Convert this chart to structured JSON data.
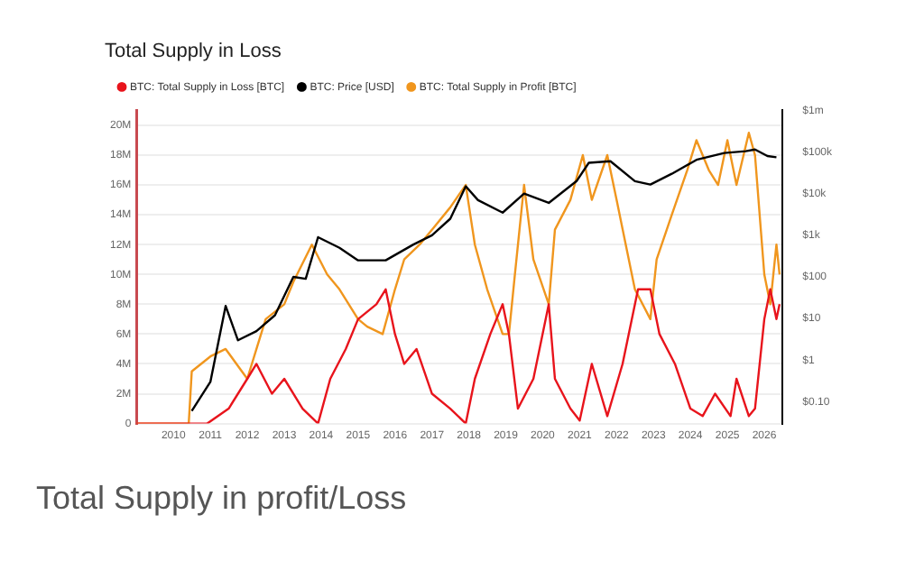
{
  "chart_data": {
    "type": "line",
    "title": "Total Supply in Loss",
    "legend": "top left",
    "grid": "y",
    "marker": "none",
    "line_style": "solid",
    "log": "y2",
    "ylim": [
      0,
      21000000
    ],
    "yticks": [
      {
        "value": 0,
        "label": "0"
      },
      {
        "value": 2000000,
        "label": "2M"
      },
      {
        "value": 4000000,
        "label": "4M"
      },
      {
        "value": 6000000,
        "label": "6M"
      },
      {
        "value": 8000000,
        "label": "8M"
      },
      {
        "value": 10000000,
        "label": "10M"
      },
      {
        "value": 12000000,
        "label": "12M"
      },
      {
        "value": 14000000,
        "label": "14M"
      },
      {
        "value": 16000000,
        "label": "16M"
      },
      {
        "value": 18000000,
        "label": "18M"
      },
      {
        "value": 20000000,
        "label": "20M"
      }
    ],
    "y2lim": [
      0.03,
      1000000
    ],
    "y2ticks": [
      {
        "value": 0.1,
        "label": "$0.10"
      },
      {
        "value": 1,
        "label": "$1"
      },
      {
        "value": 10,
        "label": "$10"
      },
      {
        "value": 100,
        "label": "$100"
      },
      {
        "value": 1000,
        "label": "$1k"
      },
      {
        "value": 10000,
        "label": "$10k"
      },
      {
        "value": 100000,
        "label": "$100k"
      },
      {
        "value": 1000000,
        "label": "$1m"
      }
    ],
    "xlim": [
      "2009-01",
      "2026-07"
    ],
    "xticks": [
      "2010",
      "2011",
      "2012",
      "2013",
      "2014",
      "2015",
      "2016",
      "2017",
      "2018",
      "2019",
      "2020",
      "2021",
      "2022",
      "2023",
      "2024",
      "2025",
      "2026"
    ],
    "series": [
      {
        "name": "BTC: Total Supply in Loss [BTC]",
        "color": "#e8141c",
        "x": [
          "2009-01",
          "2010-12",
          "2011-07",
          "2012-01",
          "2012-04",
          "2012-09",
          "2013-01",
          "2013-07",
          "2013-12",
          "2014-04",
          "2014-09",
          "2015-01",
          "2015-07",
          "2015-10",
          "2016-01",
          "2016-04",
          "2016-08",
          "2017-01",
          "2017-07",
          "2017-12",
          "2018-03",
          "2018-08",
          "2018-12",
          "2019-02",
          "2019-05",
          "2019-10",
          "2020-03",
          "2020-05",
          "2020-10",
          "2021-01",
          "2021-05",
          "2021-10",
          "2022-03",
          "2022-08",
          "2022-12",
          "2023-03",
          "2023-08",
          "2024-01",
          "2024-05",
          "2024-09",
          "2025-02",
          "2025-04",
          "2025-08",
          "2025-10",
          "2026-01",
          "2026-03",
          "2026-05",
          "2026-06"
        ],
        "values": [
          0,
          0,
          1000000,
          3000000,
          4000000,
          2000000,
          3000000,
          1000000,
          0,
          3000000,
          5000000,
          7000000,
          8000000,
          9000000,
          6000000,
          4000000,
          5000000,
          2000000,
          1000000,
          0,
          3000000,
          6000000,
          8000000,
          6000000,
          1000000,
          3000000,
          8000000,
          3000000,
          1000000,
          200000,
          4000000,
          500000,
          4000000,
          9000000,
          9000000,
          6000000,
          4000000,
          1000000,
          500000,
          2000000,
          500000,
          3000000,
          500000,
          1000000,
          7000000,
          9000000,
          7000000,
          8000000
        ]
      },
      {
        "name": "BTC: Price [USD]",
        "color": "#000000",
        "axis": "y2",
        "x": [
          "2010-07",
          "2011-01",
          "2011-06",
          "2011-10",
          "2012-04",
          "2012-10",
          "2013-04",
          "2013-08",
          "2013-12",
          "2014-07",
          "2015-01",
          "2015-10",
          "2016-07",
          "2017-01",
          "2017-07",
          "2017-12",
          "2018-04",
          "2018-12",
          "2019-07",
          "2020-03",
          "2020-12",
          "2021-04",
          "2021-11",
          "2022-07",
          "2022-12",
          "2023-07",
          "2024-03",
          "2024-12",
          "2025-07",
          "2025-10",
          "2026-02",
          "2026-05"
        ],
        "values": [
          0.06,
          0.3,
          20,
          3,
          5,
          12,
          100,
          90,
          900,
          500,
          250,
          250,
          600,
          1000,
          2500,
          15000,
          7000,
          3500,
          10000,
          6000,
          20000,
          55000,
          60000,
          20000,
          16500,
          30000,
          65000,
          95000,
          105000,
          115000,
          80000,
          75000
        ]
      },
      {
        "name": "BTC: Total Supply in Profit [BTC]",
        "color": "#f0961e",
        "x": [
          "2009-01",
          "2010-06",
          "2010-07",
          "2011-01",
          "2011-06",
          "2012-01",
          "2012-04",
          "2012-07",
          "2013-01",
          "2013-04",
          "2013-10",
          "2014-03",
          "2014-07",
          "2015-01",
          "2015-04",
          "2015-09",
          "2016-01",
          "2016-04",
          "2016-09",
          "2017-01",
          "2017-07",
          "2017-12",
          "2018-03",
          "2018-07",
          "2018-12",
          "2019-02",
          "2019-04",
          "2019-07",
          "2019-10",
          "2020-03",
          "2020-05",
          "2020-10",
          "2021-02",
          "2021-05",
          "2021-10",
          "2022-01",
          "2022-07",
          "2022-12",
          "2023-02",
          "2023-07",
          "2023-12",
          "2024-03",
          "2024-07",
          "2024-10",
          "2025-01",
          "2025-04",
          "2025-08",
          "2025-10",
          "2026-01",
          "2026-03",
          "2026-05",
          "2026-06"
        ],
        "values": [
          0,
          0,
          3500000,
          4500000,
          5000000,
          3000000,
          5000000,
          7000000,
          8000000,
          9500000,
          12000000,
          10000000,
          9000000,
          7000000,
          6500000,
          6000000,
          9000000,
          11000000,
          12000000,
          13000000,
          14500000,
          16000000,
          12000000,
          9000000,
          6000000,
          6000000,
          10000000,
          16000000,
          11000000,
          8000000,
          13000000,
          15000000,
          18000000,
          15000000,
          18000000,
          15000000,
          9000000,
          7000000,
          11000000,
          14000000,
          17000000,
          19000000,
          17000000,
          16000000,
          19000000,
          16000000,
          19500000,
          18000000,
          10000000,
          8000000,
          12000000,
          10000000
        ]
      }
    ],
    "annotations": [
      "Total Supply in profit/Loss"
    ]
  }
}
